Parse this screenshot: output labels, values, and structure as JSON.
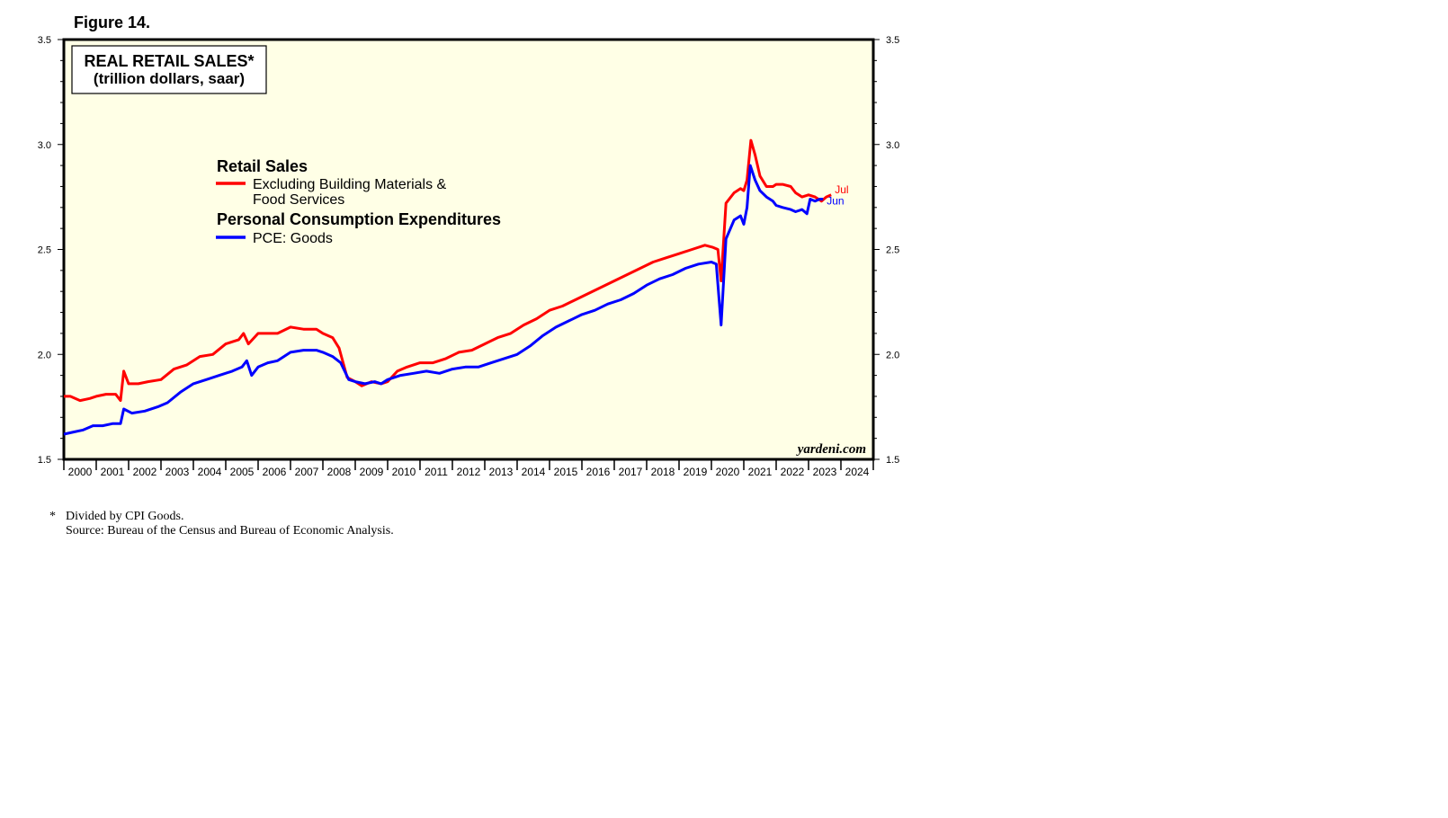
{
  "figure_label": "Figure 14.",
  "watermark": "yardeni.com",
  "footnote": {
    "marker": "*",
    "line1": "Divided by CPI Goods.",
    "line2": "Source: Bureau of the Census and Bureau of Economic Analysis."
  },
  "chart_data": {
    "type": "line",
    "title": "REAL RETAIL SALES*",
    "subtitle": "(trillion dollars, saar)",
    "ylim": [
      1.5,
      3.5
    ],
    "xlim": [
      2000.0,
      2025.0
    ],
    "yticks": [
      "1.5",
      "2.0",
      "2.5",
      "3.0",
      "3.5"
    ],
    "xtick_labels": [
      "2000",
      "2001",
      "2002",
      "2003",
      "2004",
      "2005",
      "2006",
      "2007",
      "2008",
      "2009",
      "2010",
      "2011",
      "2012",
      "2013",
      "2014",
      "2015",
      "2016",
      "2017",
      "2018",
      "2019",
      "2020",
      "2021",
      "2022",
      "2023",
      "2024"
    ],
    "grid": false,
    "background": "#ffffe6",
    "legend_groups": [
      {
        "heading": "Retail Sales",
        "items": [
          {
            "label_line1": "Excluding Building Materials &",
            "label_line2": "Food Services",
            "color": "#ff0000"
          }
        ]
      },
      {
        "heading": "Personal Consumption Expenditures",
        "items": [
          {
            "label_line1": "PCE: Goods",
            "label_line2": "",
            "color": "#0000ff"
          }
        ]
      }
    ],
    "series": [
      {
        "name": "Retail Sales",
        "color": "#ff0000",
        "end_label": "Jul",
        "points": [
          [
            2000.0,
            1.8
          ],
          [
            2000.2,
            1.8
          ],
          [
            2000.5,
            1.78
          ],
          [
            2000.8,
            1.79
          ],
          [
            2001.0,
            1.8
          ],
          [
            2001.3,
            1.81
          ],
          [
            2001.6,
            1.81
          ],
          [
            2001.75,
            1.78
          ],
          [
            2001.85,
            1.92
          ],
          [
            2002.0,
            1.86
          ],
          [
            2002.3,
            1.86
          ],
          [
            2002.6,
            1.87
          ],
          [
            2003.0,
            1.88
          ],
          [
            2003.4,
            1.93
          ],
          [
            2003.8,
            1.95
          ],
          [
            2004.2,
            1.99
          ],
          [
            2004.6,
            2.0
          ],
          [
            2005.0,
            2.05
          ],
          [
            2005.4,
            2.07
          ],
          [
            2005.55,
            2.1
          ],
          [
            2005.7,
            2.05
          ],
          [
            2006.0,
            2.1
          ],
          [
            2006.3,
            2.1
          ],
          [
            2006.6,
            2.1
          ],
          [
            2007.0,
            2.13
          ],
          [
            2007.4,
            2.12
          ],
          [
            2007.8,
            2.12
          ],
          [
            2008.0,
            2.1
          ],
          [
            2008.3,
            2.08
          ],
          [
            2008.5,
            2.03
          ],
          [
            2008.75,
            1.89
          ],
          [
            2009.0,
            1.87
          ],
          [
            2009.2,
            1.85
          ],
          [
            2009.5,
            1.87
          ],
          [
            2009.8,
            1.86
          ],
          [
            2010.0,
            1.87
          ],
          [
            2010.3,
            1.92
          ],
          [
            2010.6,
            1.94
          ],
          [
            2011.0,
            1.96
          ],
          [
            2011.4,
            1.96
          ],
          [
            2011.8,
            1.98
          ],
          [
            2012.2,
            2.01
          ],
          [
            2012.6,
            2.02
          ],
          [
            2013.0,
            2.05
          ],
          [
            2013.4,
            2.08
          ],
          [
            2013.8,
            2.1
          ],
          [
            2014.2,
            2.14
          ],
          [
            2014.6,
            2.17
          ],
          [
            2015.0,
            2.21
          ],
          [
            2015.4,
            2.23
          ],
          [
            2015.8,
            2.26
          ],
          [
            2016.2,
            2.29
          ],
          [
            2016.6,
            2.32
          ],
          [
            2017.0,
            2.35
          ],
          [
            2017.4,
            2.38
          ],
          [
            2017.8,
            2.41
          ],
          [
            2018.2,
            2.44
          ],
          [
            2018.6,
            2.46
          ],
          [
            2019.0,
            2.48
          ],
          [
            2019.4,
            2.5
          ],
          [
            2019.8,
            2.52
          ],
          [
            2020.05,
            2.51
          ],
          [
            2020.2,
            2.5
          ],
          [
            2020.3,
            2.35
          ],
          [
            2020.45,
            2.72
          ],
          [
            2020.7,
            2.77
          ],
          [
            2020.9,
            2.79
          ],
          [
            2021.0,
            2.78
          ],
          [
            2021.1,
            2.83
          ],
          [
            2021.22,
            3.02
          ],
          [
            2021.35,
            2.95
          ],
          [
            2021.5,
            2.85
          ],
          [
            2021.7,
            2.8
          ],
          [
            2021.9,
            2.8
          ],
          [
            2022.0,
            2.81
          ],
          [
            2022.2,
            2.81
          ],
          [
            2022.45,
            2.8
          ],
          [
            2022.6,
            2.77
          ],
          [
            2022.8,
            2.75
          ],
          [
            2023.0,
            2.76
          ],
          [
            2023.2,
            2.75
          ],
          [
            2023.4,
            2.73
          ],
          [
            2023.55,
            2.75
          ],
          [
            2023.7,
            2.76
          ]
        ]
      },
      {
        "name": "PCE: Goods",
        "color": "#0000ff",
        "end_label": "Jun",
        "points": [
          [
            2000.0,
            1.62
          ],
          [
            2000.3,
            1.63
          ],
          [
            2000.6,
            1.64
          ],
          [
            2000.9,
            1.66
          ],
          [
            2001.2,
            1.66
          ],
          [
            2001.5,
            1.67
          ],
          [
            2001.75,
            1.67
          ],
          [
            2001.85,
            1.74
          ],
          [
            2002.1,
            1.72
          ],
          [
            2002.5,
            1.73
          ],
          [
            2002.9,
            1.75
          ],
          [
            2003.2,
            1.77
          ],
          [
            2003.6,
            1.82
          ],
          [
            2004.0,
            1.86
          ],
          [
            2004.4,
            1.88
          ],
          [
            2004.8,
            1.9
          ],
          [
            2005.2,
            1.92
          ],
          [
            2005.5,
            1.94
          ],
          [
            2005.65,
            1.97
          ],
          [
            2005.8,
            1.9
          ],
          [
            2006.0,
            1.94
          ],
          [
            2006.3,
            1.96
          ],
          [
            2006.6,
            1.97
          ],
          [
            2007.0,
            2.01
          ],
          [
            2007.4,
            2.02
          ],
          [
            2007.8,
            2.02
          ],
          [
            2008.0,
            2.01
          ],
          [
            2008.3,
            1.99
          ],
          [
            2008.55,
            1.96
          ],
          [
            2008.8,
            1.88
          ],
          [
            2009.0,
            1.87
          ],
          [
            2009.3,
            1.86
          ],
          [
            2009.6,
            1.87
          ],
          [
            2009.8,
            1.86
          ],
          [
            2010.0,
            1.88
          ],
          [
            2010.4,
            1.9
          ],
          [
            2010.8,
            1.91
          ],
          [
            2011.2,
            1.92
          ],
          [
            2011.6,
            1.91
          ],
          [
            2012.0,
            1.93
          ],
          [
            2012.4,
            1.94
          ],
          [
            2012.8,
            1.94
          ],
          [
            2013.2,
            1.96
          ],
          [
            2013.6,
            1.98
          ],
          [
            2014.0,
            2.0
          ],
          [
            2014.4,
            2.04
          ],
          [
            2014.8,
            2.09
          ],
          [
            2015.2,
            2.13
          ],
          [
            2015.6,
            2.16
          ],
          [
            2016.0,
            2.19
          ],
          [
            2016.4,
            2.21
          ],
          [
            2016.8,
            2.24
          ],
          [
            2017.2,
            2.26
          ],
          [
            2017.6,
            2.29
          ],
          [
            2018.0,
            2.33
          ],
          [
            2018.4,
            2.36
          ],
          [
            2018.8,
            2.38
          ],
          [
            2019.2,
            2.41
          ],
          [
            2019.6,
            2.43
          ],
          [
            2020.0,
            2.44
          ],
          [
            2020.15,
            2.43
          ],
          [
            2020.3,
            2.14
          ],
          [
            2020.45,
            2.55
          ],
          [
            2020.7,
            2.64
          ],
          [
            2020.9,
            2.66
          ],
          [
            2021.0,
            2.62
          ],
          [
            2021.1,
            2.7
          ],
          [
            2021.2,
            2.9
          ],
          [
            2021.35,
            2.83
          ],
          [
            2021.5,
            2.78
          ],
          [
            2021.7,
            2.75
          ],
          [
            2021.9,
            2.73
          ],
          [
            2022.0,
            2.71
          ],
          [
            2022.2,
            2.7
          ],
          [
            2022.45,
            2.69
          ],
          [
            2022.6,
            2.68
          ],
          [
            2022.8,
            2.69
          ],
          [
            2022.95,
            2.67
          ],
          [
            2023.05,
            2.74
          ],
          [
            2023.2,
            2.73
          ],
          [
            2023.35,
            2.74
          ],
          [
            2023.45,
            2.74
          ]
        ]
      }
    ]
  }
}
